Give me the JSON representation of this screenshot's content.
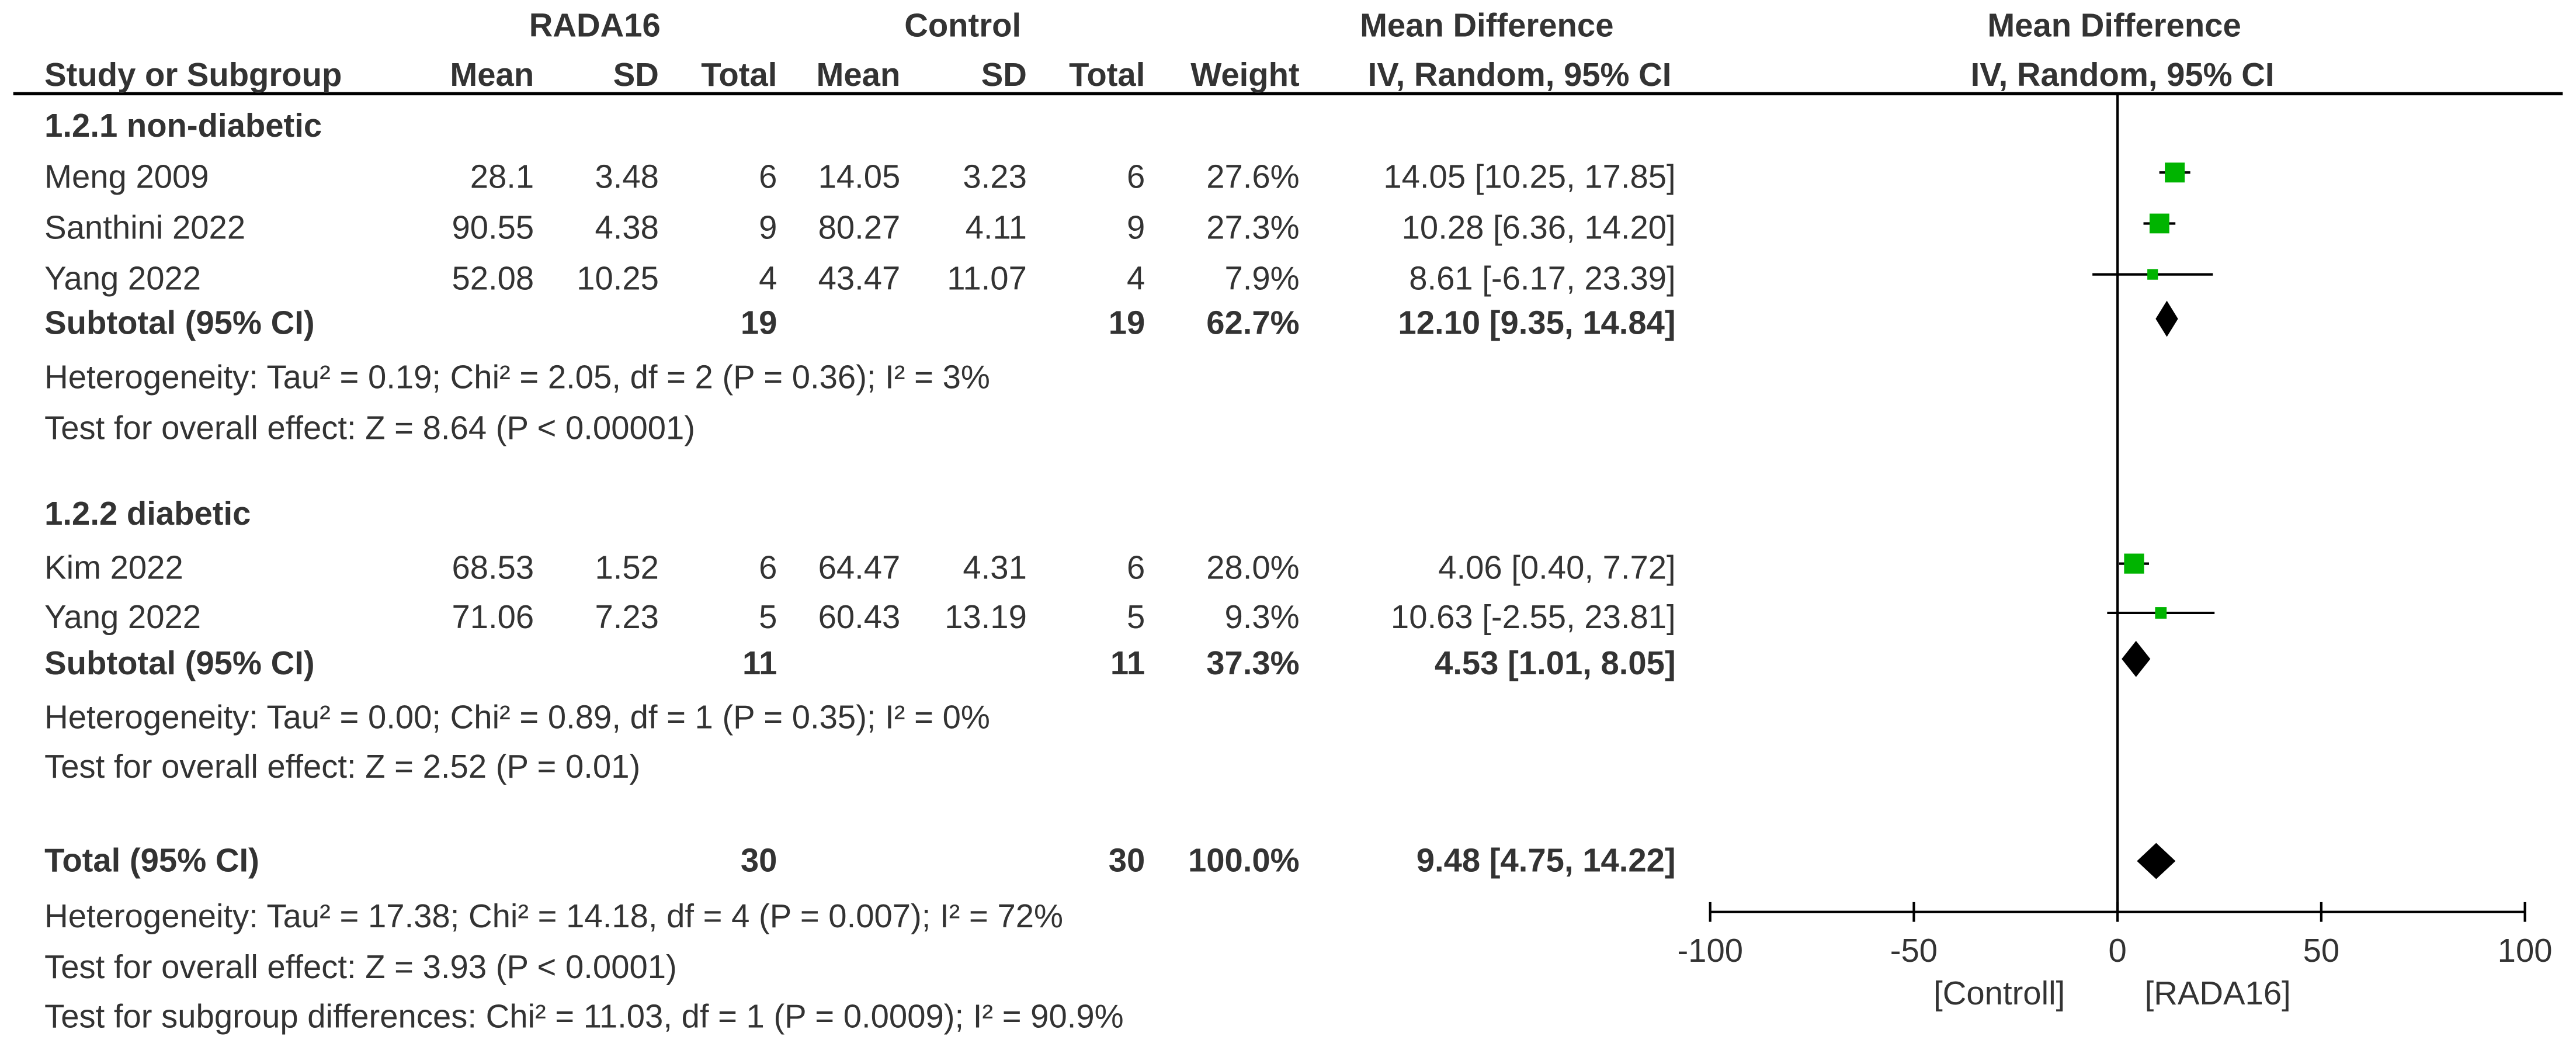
{
  "chart_data": {
    "type": "forest",
    "header": {
      "groups": [
        "RADA16",
        "Control",
        "Mean Difference",
        "Mean Difference"
      ],
      "columns": [
        "Study or Subgroup",
        "Mean",
        "SD",
        "Total",
        "Mean",
        "SD",
        "Total",
        "Weight",
        "IV, Random, 95% CI",
        "IV, Random, 95% CI"
      ]
    },
    "subgroups": [
      {
        "title": "1.2.1 non-diabetic",
        "studies": [
          {
            "name": "Meng 2009",
            "exp_mean": 28.1,
            "exp_sd": 3.48,
            "exp_total": 6,
            "ctl_mean": 14.05,
            "ctl_sd": 3.23,
            "ctl_total": 6,
            "weight": 27.6,
            "weight_label": "27.6%",
            "md": 14.05,
            "ci": [
              10.25,
              17.85
            ],
            "ci_label": "14.05 [10.25, 17.85]"
          },
          {
            "name": "Santhini 2022",
            "exp_mean": 90.55,
            "exp_sd": 4.38,
            "exp_total": 9,
            "ctl_mean": 80.27,
            "ctl_sd": 4.11,
            "ctl_total": 9,
            "weight": 27.3,
            "weight_label": "27.3%",
            "md": 10.28,
            "ci": [
              6.36,
              14.2
            ],
            "ci_label": "10.28 [6.36, 14.20]"
          },
          {
            "name": "Yang 2022",
            "exp_mean": 52.08,
            "exp_sd": 10.25,
            "exp_total": 4,
            "ctl_mean": 43.47,
            "ctl_sd": 11.07,
            "ctl_total": 4,
            "weight": 7.9,
            "weight_label": "7.9%",
            "md": 8.61,
            "ci": [
              -6.17,
              23.39
            ],
            "ci_label": "8.61 [-6.17, 23.39]"
          }
        ],
        "subtotal": {
          "name": "Subtotal (95% CI)",
          "exp_total": 19,
          "ctl_total": 19,
          "weight": 62.7,
          "weight_label": "62.7%",
          "md": 12.1,
          "ci": [
            9.35,
            14.84
          ],
          "ci_label": "12.10 [9.35, 14.84]"
        },
        "heterogeneity": "Heterogeneity: Tau² = 0.19; Chi² = 2.05, df = 2 (P = 0.36); I² = 3%",
        "overall": "Test for overall effect: Z = 8.64 (P < 0.00001)"
      },
      {
        "title": "1.2.2 diabetic",
        "studies": [
          {
            "name": "Kim 2022",
            "exp_mean": 68.53,
            "exp_sd": 1.52,
            "exp_total": 6,
            "ctl_mean": 64.47,
            "ctl_sd": 4.31,
            "ctl_total": 6,
            "weight": 28.0,
            "weight_label": "28.0%",
            "md": 4.06,
            "ci": [
              0.4,
              7.72
            ],
            "ci_label": "4.06 [0.40, 7.72]"
          },
          {
            "name": "Yang 2022",
            "exp_mean": 71.06,
            "exp_sd": 7.23,
            "exp_total": 5,
            "ctl_mean": 60.43,
            "ctl_sd": 13.19,
            "ctl_total": 5,
            "weight": 9.3,
            "weight_label": "9.3%",
            "md": 10.63,
            "ci": [
              -2.55,
              23.81
            ],
            "ci_label": "10.63 [-2.55, 23.81]"
          }
        ],
        "subtotal": {
          "name": "Subtotal (95% CI)",
          "exp_total": 11,
          "ctl_total": 11,
          "weight": 37.3,
          "weight_label": "37.3%",
          "md": 4.53,
          "ci": [
            1.01,
            8.05
          ],
          "ci_label": "4.53 [1.01, 8.05]"
        },
        "heterogeneity": "Heterogeneity: Tau² = 0.00; Chi² = 0.89, df = 1 (P = 0.35); I² = 0%",
        "overall": "Test for overall effect: Z = 2.52 (P = 0.01)"
      }
    ],
    "total": {
      "name": "Total (95% CI)",
      "exp_total": 30,
      "ctl_total": 30,
      "weight": 100.0,
      "weight_label": "100.0%",
      "md": 9.48,
      "ci": [
        4.75,
        14.22
      ],
      "ci_label": "9.48 [4.75, 14.22]",
      "heterogeneity": "Heterogeneity: Tau² = 17.38; Chi² = 14.18, df = 4 (P = 0.007); I² = 72%",
      "overall": "Test for overall effect: Z = 3.93 (P < 0.0001)",
      "subgroup_test": "Test for subgroup differences: Chi² = 11.03, df = 1 (P = 0.0009); I² = 90.9%"
    },
    "xlim": [
      -100,
      100
    ],
    "xticks": [
      -100,
      -50,
      0,
      50,
      100
    ],
    "xlabels": [
      "[Controll]",
      "[RADA16]"
    ],
    "square_color": "#00b400",
    "diamond_color": "#000000"
  }
}
